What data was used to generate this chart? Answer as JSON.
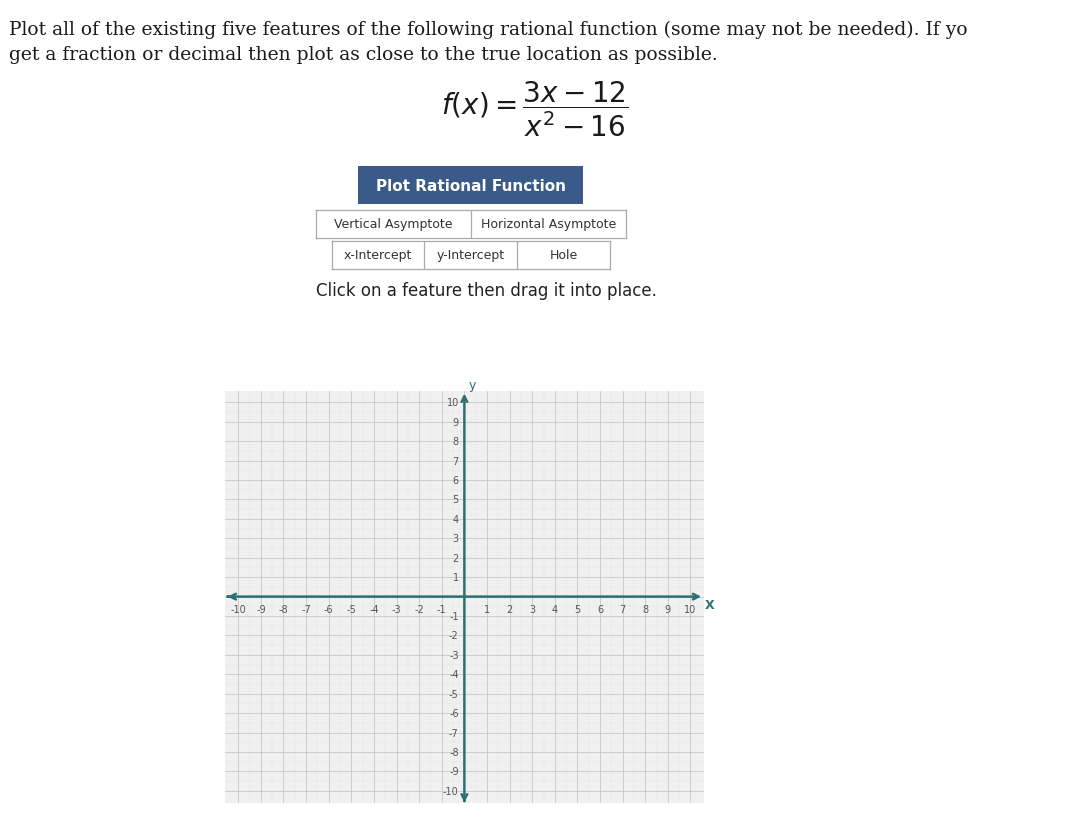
{
  "title_line1": "Plot all of the existing five features of the following rational function (some may not be needed). If yo",
  "title_line2": "get a fraction or decimal then plot as close to the true location as possible.",
  "button_text": "Plot Rational Function",
  "button_bg": "#3a5a8a",
  "button_text_color": "#ffffff",
  "feature_buttons_row1": [
    "Vertical Asymptote",
    "Horizontal Asymptote"
  ],
  "feature_buttons_row2": [
    "x-Intercept",
    "y-Intercept",
    "Hole"
  ],
  "feature_button_bg": "#ffffff",
  "feature_button_border": "#aaaaaa",
  "click_text": "Click on a feature then drag it into place.",
  "axis_color": "#2d7070",
  "grid_major_color": "#c8c8c8",
  "grid_minor_color": "#e2e2e2",
  "bg_color": "#f0f0f0",
  "page_bg": "#ffffff",
  "axis_range_min": -10,
  "axis_range_max": 10,
  "axis_label_x": "X",
  "axis_label_y": "y",
  "title_fontsize": 13.5,
  "formula_fontsize": 20,
  "button_fontsize": 11,
  "feature_fontsize": 9,
  "click_fontsize": 12,
  "tick_fontsize": 7
}
